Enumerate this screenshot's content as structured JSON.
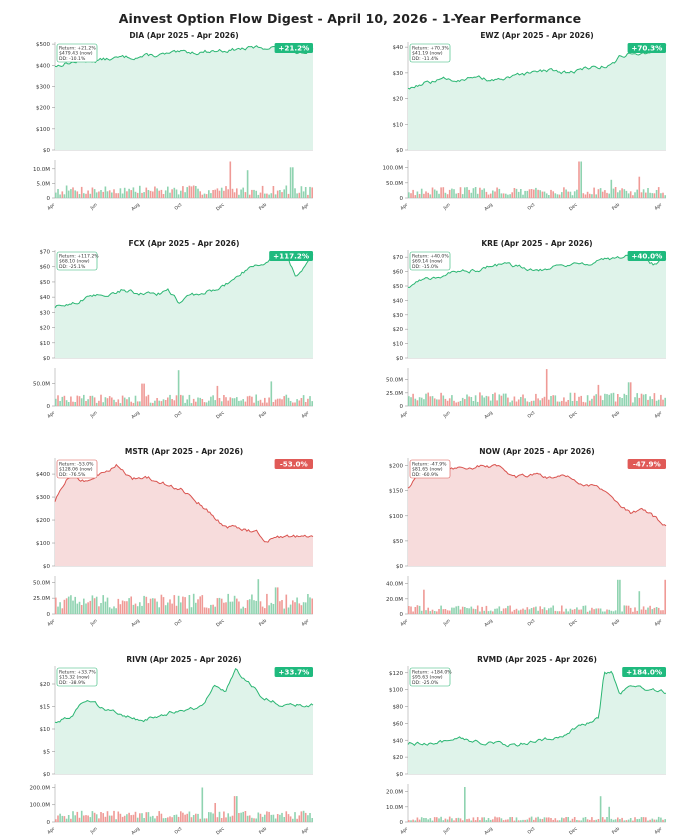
{
  "page_title": "Ainvest Option Flow Digest - April 10, 2026 - 1-Year Performance",
  "colors": {
    "up": "#2bb673",
    "up_fill": "#dff3ea",
    "down": "#d9534f",
    "down_fill": "#f7dcdc",
    "bar_up": "#8fd3b0",
    "bar_down": "#ef9a96",
    "badge_up": "#1fba7e",
    "badge_down": "#e05a57"
  },
  "month_labels": [
    "Apr",
    "Jun",
    "Aug",
    "Oct",
    "Dec",
    "Feb",
    "Apr"
  ],
  "chart_data": [
    {
      "type": "line",
      "ticker": "DIA",
      "title": "DIA  (Apr 2025 - Apr 2026)",
      "badge": "+21.2%",
      "direction": "up",
      "info_lines": [
        "Return: +21.2%",
        "$479.43 (now)",
        "DD: -10.1%"
      ],
      "price_ticks": [
        0,
        100,
        200,
        300,
        400,
        500
      ],
      "price_tick_labels": [
        "$0",
        "$100",
        "$200",
        "$300",
        "$400",
        "$500"
      ],
      "ylim": [
        0,
        510
      ],
      "price_path": [
        [
          0,
          395
        ],
        [
          0.04,
          410
        ],
        [
          0.1,
          420
        ],
        [
          0.2,
          428
        ],
        [
          0.3,
          440
        ],
        [
          0.4,
          447
        ],
        [
          0.5,
          458
        ],
        [
          0.6,
          468
        ],
        [
          0.7,
          475
        ],
        [
          0.78,
          482
        ],
        [
          0.86,
          488
        ],
        [
          0.9,
          480
        ],
        [
          0.94,
          462
        ],
        [
          0.97,
          470
        ],
        [
          1.0,
          479
        ]
      ],
      "volume_ticks": [
        0,
        5000000,
        10000000
      ],
      "volume_tick_labels": [
        "0",
        "5.0M",
        "10.0M"
      ],
      "volume_max": 13000000,
      "volume_base": 3000000,
      "volume_spikes": [
        [
          0.68,
          12500000
        ],
        [
          0.75,
          9500000
        ],
        [
          0.92,
          10500000
        ]
      ]
    },
    {
      "type": "line",
      "ticker": "EWZ",
      "title": "EWZ  (Apr 2025 - Apr 2026)",
      "badge": "+70.3%",
      "direction": "up",
      "info_lines": [
        "Return: +70.3%",
        "$41.19 (now)",
        "DD: -11.4%"
      ],
      "price_ticks": [
        0,
        10,
        20,
        30,
        40
      ],
      "price_tick_labels": [
        "$0",
        "$10",
        "$20",
        "$30",
        "$40"
      ],
      "ylim": [
        0,
        42
      ],
      "price_path": [
        [
          0,
          24
        ],
        [
          0.06,
          26
        ],
        [
          0.15,
          27.5
        ],
        [
          0.25,
          28
        ],
        [
          0.35,
          27
        ],
        [
          0.45,
          29
        ],
        [
          0.55,
          31
        ],
        [
          0.62,
          30
        ],
        [
          0.7,
          32
        ],
        [
          0.78,
          33
        ],
        [
          0.8,
          33.5
        ],
        [
          0.82,
          36
        ],
        [
          0.86,
          38
        ],
        [
          0.9,
          37
        ],
        [
          0.95,
          38.5
        ],
        [
          1.0,
          41
        ]
      ],
      "volume_ticks": [
        0,
        50000000,
        100000000
      ],
      "volume_tick_labels": [
        "0",
        "50.0M",
        "100.0M"
      ],
      "volume_max": 125000000,
      "volume_base": 25000000,
      "volume_spikes": [
        [
          0.67,
          120000000
        ],
        [
          0.79,
          60000000
        ],
        [
          0.9,
          70000000
        ]
      ]
    },
    {
      "type": "line",
      "ticker": "FCX",
      "title": "FCX  (Apr 2025 - Apr 2026)",
      "badge": "+117.2%",
      "direction": "up",
      "info_lines": [
        "Return: +117.2%",
        "$68.10 (now)",
        "DD: -25.1%"
      ],
      "price_ticks": [
        0,
        10,
        20,
        30,
        40,
        50,
        60,
        70
      ],
      "price_tick_labels": [
        "$0",
        "$10",
        "$20",
        "$30",
        "$40",
        "$50",
        "$60",
        "$70"
      ],
      "ylim": [
        0,
        71
      ],
      "price_path": [
        [
          0,
          33
        ],
        [
          0.06,
          36
        ],
        [
          0.12,
          39
        ],
        [
          0.2,
          42
        ],
        [
          0.26,
          45
        ],
        [
          0.32,
          43
        ],
        [
          0.38,
          41
        ],
        [
          0.44,
          44
        ],
        [
          0.48,
          36
        ],
        [
          0.52,
          40
        ],
        [
          0.6,
          44
        ],
        [
          0.66,
          48
        ],
        [
          0.72,
          56
        ],
        [
          0.8,
          62
        ],
        [
          0.86,
          68
        ],
        [
          0.9,
          66
        ],
        [
          0.93,
          54
        ],
        [
          0.96,
          58
        ],
        [
          1.0,
          68
        ]
      ],
      "volume_ticks": [
        0,
        50000000
      ],
      "volume_tick_labels": [
        "0",
        "50.0M"
      ],
      "volume_max": 85000000,
      "volume_base": 18000000,
      "volume_spikes": [
        [
          0.34,
          50000000
        ],
        [
          0.48,
          80000000
        ],
        [
          0.63,
          45000000
        ],
        [
          0.84,
          55000000
        ]
      ]
    },
    {
      "type": "line",
      "ticker": "KRE",
      "title": "KRE  (Apr 2025 - Apr 2026)",
      "badge": "+40.0%",
      "direction": "up",
      "info_lines": [
        "Return: +40.0%",
        "$69.14 (now)",
        "DD: -15.0%"
      ],
      "price_ticks": [
        0,
        10,
        20,
        30,
        40,
        50,
        60,
        70
      ],
      "price_tick_labels": [
        "$0",
        "$10",
        "$20",
        "$30",
        "$40",
        "$50",
        "$60",
        "$70"
      ],
      "ylim": [
        0,
        75
      ],
      "price_path": [
        [
          0,
          49
        ],
        [
          0.05,
          54
        ],
        [
          0.12,
          57
        ],
        [
          0.2,
          60
        ],
        [
          0.28,
          62
        ],
        [
          0.36,
          65
        ],
        [
          0.44,
          63
        ],
        [
          0.52,
          62
        ],
        [
          0.6,
          65
        ],
        [
          0.7,
          66
        ],
        [
          0.78,
          68
        ],
        [
          0.86,
          72
        ],
        [
          0.9,
          68
        ],
        [
          0.95,
          65
        ],
        [
          1.0,
          69
        ]
      ],
      "volume_ticks": [
        0,
        25000000,
        50000000
      ],
      "volume_tick_labels": [
        "0",
        "25.0M",
        "50.0M"
      ],
      "volume_max": 72000000,
      "volume_base": 18000000,
      "volume_spikes": [
        [
          0.54,
          70000000
        ],
        [
          0.74,
          40000000
        ],
        [
          0.86,
          45000000
        ]
      ]
    },
    {
      "type": "line",
      "ticker": "MSTR",
      "title": "MSTR  (Apr 2025 - Apr 2026)",
      "badge": "-53.0%",
      "direction": "down",
      "info_lines": [
        "Return: -53.0%",
        "$128.06 (now)",
        "DD: -76.5%"
      ],
      "price_ticks": [
        0,
        100,
        200,
        300,
        400
      ],
      "price_tick_labels": [
        "$0",
        "$100",
        "$200",
        "$300",
        "$400"
      ],
      "ylim": [
        0,
        470
      ],
      "price_path": [
        [
          0,
          280
        ],
        [
          0.05,
          380
        ],
        [
          0.12,
          370
        ],
        [
          0.18,
          400
        ],
        [
          0.24,
          445
        ],
        [
          0.3,
          380
        ],
        [
          0.36,
          385
        ],
        [
          0.42,
          360
        ],
        [
          0.48,
          340
        ],
        [
          0.54,
          300
        ],
        [
          0.6,
          230
        ],
        [
          0.66,
          170
        ],
        [
          0.72,
          165
        ],
        [
          0.78,
          150
        ],
        [
          0.82,
          110
        ],
        [
          0.88,
          130
        ],
        [
          0.94,
          125
        ],
        [
          1.0,
          128
        ]
      ],
      "volume_ticks": [
        0,
        25000000,
        50000000
      ],
      "volume_tick_labels": [
        "0",
        "25.0M",
        "50.0M"
      ],
      "volume_max": 60000000,
      "volume_base": 22000000,
      "volume_spikes": [
        [
          0.79,
          55000000
        ],
        [
          0.86,
          42000000
        ]
      ]
    },
    {
      "type": "line",
      "ticker": "NOW",
      "title": "NOW  (Apr 2025 - Apr 2026)",
      "badge": "-47.9%",
      "direction": "down",
      "info_lines": [
        "Return: -47.9%",
        "$81.65 (now)",
        "DD: -60.9%"
      ],
      "price_ticks": [
        0,
        50,
        100,
        150,
        200
      ],
      "price_tick_labels": [
        "$0",
        "$50",
        "$100",
        "$150",
        "$200"
      ],
      "ylim": [
        0,
        215
      ],
      "price_path": [
        [
          0,
          155
        ],
        [
          0.06,
          190
        ],
        [
          0.12,
          198
        ],
        [
          0.2,
          195
        ],
        [
          0.28,
          200
        ],
        [
          0.36,
          195
        ],
        [
          0.42,
          180
        ],
        [
          0.5,
          185
        ],
        [
          0.56,
          175
        ],
        [
          0.62,
          180
        ],
        [
          0.68,
          165
        ],
        [
          0.74,
          155
        ],
        [
          0.8,
          130
        ],
        [
          0.86,
          105
        ],
        [
          0.92,
          110
        ],
        [
          0.96,
          95
        ],
        [
          1.0,
          80
        ]
      ],
      "volume_ticks": [
        0,
        20000000,
        40000000
      ],
      "volume_tick_labels": [
        "0",
        "20.0M",
        "40.0M"
      ],
      "volume_max": 50000000,
      "volume_base": 8000000,
      "volume_spikes": [
        [
          0.06,
          32000000
        ],
        [
          0.82,
          45000000
        ],
        [
          0.9,
          30000000
        ],
        [
          1.0,
          45000000
        ]
      ]
    },
    {
      "type": "line",
      "ticker": "RIVN",
      "title": "RIVN  (Apr 2025 - Apr 2026)",
      "badge": "+33.7%",
      "direction": "up",
      "info_lines": [
        "Return: +33.7%",
        "$15.32 (now)",
        "DD: -38.9%"
      ],
      "price_ticks": [
        0,
        5,
        10,
        15,
        20
      ],
      "price_tick_labels": [
        "$0",
        "$5",
        "$10",
        "$15",
        "$20"
      ],
      "ylim": [
        0,
        24
      ],
      "price_path": [
        [
          0,
          11.5
        ],
        [
          0.06,
          13
        ],
        [
          0.1,
          15.5
        ],
        [
          0.14,
          16.5
        ],
        [
          0.2,
          14
        ],
        [
          0.26,
          13
        ],
        [
          0.34,
          12
        ],
        [
          0.4,
          13
        ],
        [
          0.46,
          14
        ],
        [
          0.52,
          14.5
        ],
        [
          0.58,
          15
        ],
        [
          0.62,
          20
        ],
        [
          0.66,
          18
        ],
        [
          0.7,
          23
        ],
        [
          0.74,
          21
        ],
        [
          0.8,
          17.5
        ],
        [
          0.86,
          16
        ],
        [
          0.9,
          15
        ],
        [
          0.95,
          15.5
        ],
        [
          1.0,
          15.3
        ]
      ],
      "volume_ticks": [
        0,
        100000000,
        200000000
      ],
      "volume_tick_labels": [
        "0",
        "100.0M",
        "200.0M"
      ],
      "volume_max": 220000000,
      "volume_base": 45000000,
      "volume_spikes": [
        [
          0.57,
          200000000
        ],
        [
          0.62,
          110000000
        ],
        [
          0.7,
          150000000
        ]
      ]
    },
    {
      "type": "line",
      "ticker": "RVMD",
      "title": "RVMD  (Apr 2025 - Apr 2026)",
      "badge": "+184.0%",
      "direction": "up",
      "info_lines": [
        "Return: +184.0%",
        "$95.63 (now)",
        "DD: -25.0%"
      ],
      "price_ticks": [
        0,
        20,
        40,
        60,
        80,
        100,
        120
      ],
      "price_tick_labels": [
        "$0",
        "$20",
        "$40",
        "$60",
        "$80",
        "$100",
        "$120"
      ],
      "ylim": [
        0,
        128
      ],
      "price_path": [
        [
          0,
          35
        ],
        [
          0.1,
          38
        ],
        [
          0.2,
          40
        ],
        [
          0.3,
          37
        ],
        [
          0.42,
          35
        ],
        [
          0.5,
          40
        ],
        [
          0.58,
          45
        ],
        [
          0.66,
          55
        ],
        [
          0.72,
          63
        ],
        [
          0.74,
          68
        ],
        [
          0.76,
          118
        ],
        [
          0.79,
          122
        ],
        [
          0.82,
          95
        ],
        [
          0.86,
          105
        ],
        [
          0.9,
          100
        ],
        [
          0.95,
          98
        ],
        [
          1.0,
          95.6
        ]
      ],
      "volume_ticks": [
        0,
        10000000,
        20000000
      ],
      "volume_tick_labels": [
        "0",
        "10.0M",
        "20.0M"
      ],
      "volume_max": 25000000,
      "volume_base": 2500000,
      "volume_spikes": [
        [
          0.22,
          23000000
        ],
        [
          0.75,
          17000000
        ],
        [
          0.78,
          10000000
        ]
      ]
    }
  ]
}
